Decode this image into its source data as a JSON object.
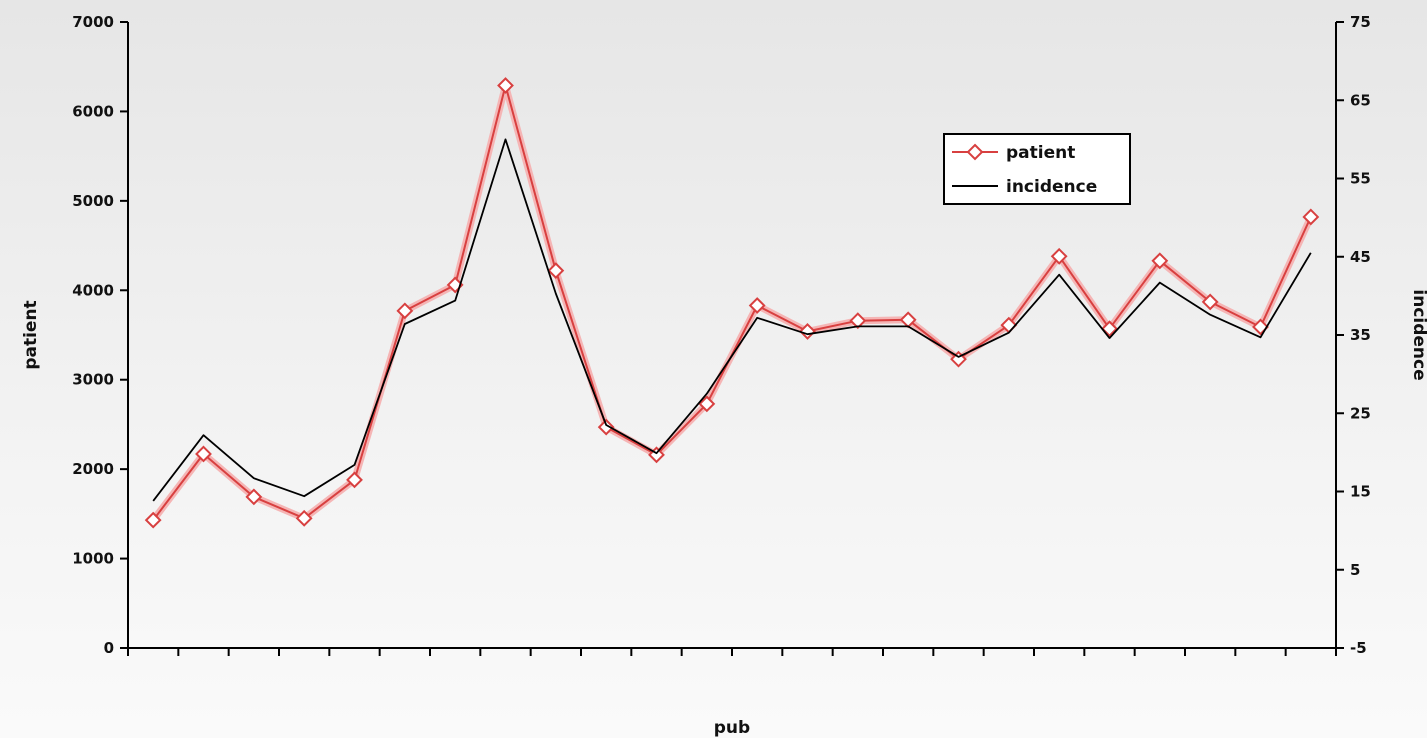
{
  "chart_data": {
    "type": "line",
    "xlabel": "pub",
    "ylabel_left": "patient",
    "ylabel_right": "incidence",
    "ylim_left": [
      0,
      7000
    ],
    "yticks_left": [
      0,
      1000,
      2000,
      3000,
      4000,
      5000,
      6000,
      7000
    ],
    "ylim_right": [
      -5,
      75
    ],
    "yticks_right": [
      -5,
      5,
      15,
      25,
      35,
      45,
      55,
      65,
      75
    ],
    "n_categories": 24,
    "legend_position": "top-right",
    "grid": false,
    "series": [
      {
        "name": "patient",
        "axis": "left",
        "color": "#d84040",
        "marker": "diamond",
        "values": [
          1430,
          2170,
          1690,
          1450,
          1880,
          3770,
          4060,
          6290,
          4220,
          2470,
          2160,
          2730,
          3830,
          3540,
          3660,
          3670,
          3230,
          3610,
          4380,
          3570,
          4330,
          3870,
          3590,
          4820
        ]
      },
      {
        "name": "incidence",
        "axis": "right",
        "color": "#000000",
        "marker": "none",
        "values": [
          13.8,
          22.2,
          16.7,
          14.4,
          18.4,
          36.4,
          39.4,
          60.0,
          40.3,
          23.5,
          19.9,
          27.5,
          37.2,
          35.1,
          36.1,
          36.1,
          32.2,
          35.3,
          42.7,
          34.6,
          41.7,
          37.6,
          34.7,
          45.5
        ]
      }
    ]
  }
}
